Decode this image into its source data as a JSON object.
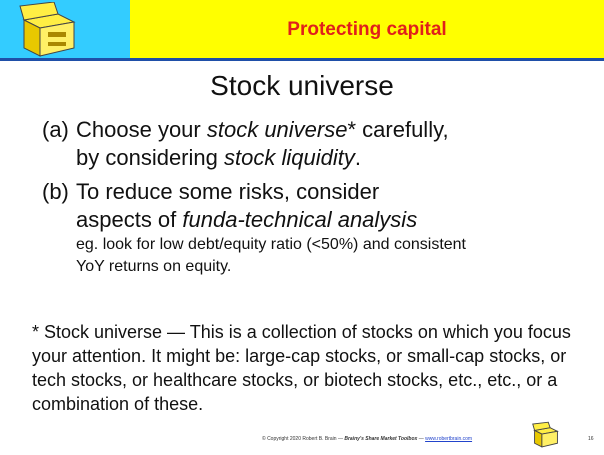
{
  "header": {
    "title": "Protecting capital"
  },
  "title": "Stock universe",
  "points": [
    {
      "label": "(a)",
      "lines": [
        [
          "Choose your ",
          "stock universe",
          "* carefully,"
        ],
        [
          "by considering ",
          "stock liquidity",
          "."
        ]
      ]
    },
    {
      "label": "(b)",
      "lines": [
        [
          "To reduce some risks, consider"
        ],
        [
          "aspects of ",
          "funda-technical analysis"
        ]
      ],
      "detail": "eg. look for low debt/equity ratio (<50%) and consistent YoY returns on equity."
    }
  ],
  "footnote": "* Stock universe — This is a collection of stocks on which you focus your attention. It might be: large-cap stocks, or small-cap stocks, or tech stocks, or healthcare stocks, or biotech stocks, etc., etc., or a combination of these.",
  "footer": {
    "copyright": "© Copyright 2020 Robert B. Brain — ",
    "book": "Brainy's Share Market Toolbox",
    "sep": " — ",
    "link": "www.robertbrain.com",
    "page": "16"
  }
}
